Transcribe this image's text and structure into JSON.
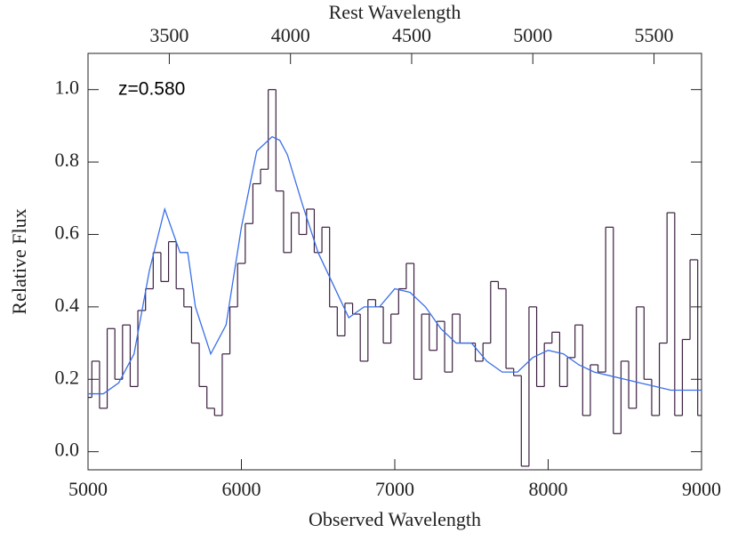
{
  "chart_data": {
    "type": "line",
    "x_label": "Observed Wavelength",
    "y_label": "Relative Flux",
    "x2_label": "Rest Wavelength",
    "annotation": "z=0.580",
    "xlim": [
      5000,
      9000
    ],
    "xticks": [
      5000,
      6000,
      7000,
      8000,
      9000
    ],
    "x2lim": [
      3164.6,
      5696.2
    ],
    "x2ticks": [
      3500,
      4000,
      4500,
      5000,
      5500
    ],
    "ylim": [
      -0.05,
      1.1
    ],
    "yticks": [
      {
        "value": 0,
        "label": "0.0"
      },
      0.2,
      0.4,
      0.6,
      0.8,
      {
        "value": 1,
        "label": "1.0"
      }
    ],
    "series": [
      {
        "style": "step",
        "color": "#3b1f3f",
        "x": [
          5000,
          5050,
          5100,
          5150,
          5200,
          5250,
          5300,
          5350,
          5400,
          5450,
          5500,
          5550,
          5600,
          5650,
          5700,
          5750,
          5800,
          5850,
          5900,
          5950,
          6000,
          6050,
          6100,
          6150,
          6200,
          6250,
          6300,
          6350,
          6400,
          6450,
          6500,
          6550,
          6600,
          6650,
          6700,
          6750,
          6800,
          6850,
          6900,
          6950,
          7000,
          7050,
          7100,
          7150,
          7200,
          7250,
          7300,
          7350,
          7400,
          7450,
          7500,
          7550,
          7600,
          7650,
          7700,
          7750,
          7800,
          7850,
          7900,
          7950,
          8000,
          8050,
          8100,
          8150,
          8200,
          8250,
          8300,
          8350,
          8400,
          8450,
          8500,
          8550,
          8600,
          8650,
          8700,
          8750,
          8800,
          8850,
          8900,
          8950,
          9000
        ],
        "values": [
          0.15,
          0.25,
          0.12,
          0.34,
          0.2,
          0.35,
          0.18,
          0.39,
          0.45,
          0.55,
          0.47,
          0.58,
          0.45,
          0.4,
          0.3,
          0.18,
          0.12,
          0.1,
          0.27,
          0.4,
          0.52,
          0.63,
          0.74,
          0.78,
          1.0,
          0.72,
          0.55,
          0.66,
          0.6,
          0.67,
          0.55,
          0.62,
          0.4,
          0.32,
          0.41,
          0.38,
          0.25,
          0.42,
          0.4,
          0.3,
          0.38,
          0.45,
          0.52,
          0.2,
          0.38,
          0.28,
          0.36,
          0.22,
          0.38,
          0.3,
          0.3,
          0.25,
          0.3,
          0.47,
          0.45,
          0.23,
          0.21,
          -0.04,
          0.4,
          0.18,
          0.3,
          0.33,
          0.18,
          0.26,
          0.35,
          0.1,
          0.24,
          0.22,
          0.62,
          0.05,
          0.25,
          0.12,
          0.4,
          0.2,
          0.1,
          0.3,
          0.66,
          0.1,
          0.31,
          0.53,
          0.1
        ]
      },
      {
        "style": "line",
        "color": "#3a6fe8",
        "x": [
          5000,
          5100,
          5200,
          5300,
          5400,
          5500,
          5600,
          5650,
          5700,
          5800,
          5900,
          6000,
          6100,
          6200,
          6250,
          6300,
          6400,
          6500,
          6600,
          6700,
          6800,
          6900,
          7000,
          7100,
          7200,
          7300,
          7400,
          7500,
          7600,
          7700,
          7800,
          7900,
          8000,
          8100,
          8200,
          8300,
          8400,
          8500,
          8600,
          8700,
          8800,
          8900,
          9000
        ],
        "values": [
          0.16,
          0.16,
          0.19,
          0.27,
          0.5,
          0.67,
          0.55,
          0.55,
          0.4,
          0.27,
          0.35,
          0.62,
          0.83,
          0.87,
          0.86,
          0.82,
          0.68,
          0.55,
          0.46,
          0.37,
          0.4,
          0.4,
          0.45,
          0.44,
          0.4,
          0.34,
          0.3,
          0.3,
          0.25,
          0.22,
          0.22,
          0.26,
          0.28,
          0.27,
          0.24,
          0.22,
          0.21,
          0.2,
          0.19,
          0.18,
          0.17,
          0.17,
          0.17
        ]
      }
    ]
  }
}
